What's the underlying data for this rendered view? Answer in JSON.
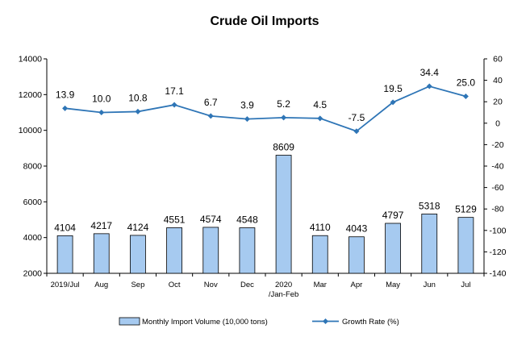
{
  "chart_data": {
    "type": "bar+line",
    "title": "Crude Oil Imports",
    "categories": [
      "2019/Jul",
      "Aug",
      "Sep",
      "Oct",
      "Nov",
      "Dec",
      "2020\n/Jan-Feb",
      "Mar",
      "Apr",
      "May",
      "Jun",
      "Jul"
    ],
    "series": [
      {
        "name": "Monthly Import Volume (10,000 tons)",
        "type": "bar",
        "axis": "left",
        "color": "#a6caf0",
        "values": [
          4104,
          4217,
          4124,
          4551,
          4574,
          4548,
          8609,
          4110,
          4043,
          4797,
          5318,
          5129
        ],
        "labels": [
          "4104",
          "4217",
          "4124",
          "4551",
          "4574",
          "4548",
          "8609",
          "4110",
          "4043",
          "4797",
          "5318",
          "5129"
        ]
      },
      {
        "name": "Growth Rate (%)",
        "type": "line",
        "axis": "right",
        "color": "#2e75b6",
        "values": [
          13.9,
          10.0,
          10.8,
          17.1,
          6.7,
          3.9,
          5.2,
          4.5,
          -7.5,
          19.5,
          34.4,
          25.0
        ],
        "labels": [
          "13.9",
          "10.0",
          "10.8",
          "17.1",
          "6.7",
          "3.9",
          "5.2",
          "4.5",
          "-7.5",
          "19.5",
          "34.4",
          "25.0"
        ]
      }
    ],
    "y_left": {
      "min": 2000,
      "max": 14000,
      "ticks": [
        2000,
        4000,
        6000,
        8000,
        10000,
        12000,
        14000
      ],
      "tick_labels": [
        "2000",
        "4000",
        "6000",
        "8000",
        "10000",
        "12000",
        "14000"
      ]
    },
    "y_right": {
      "min": -140,
      "max": 60,
      "ticks": [
        -140,
        -120,
        -100,
        -80,
        -60,
        -40,
        -20,
        0,
        20,
        40,
        60
      ],
      "tick_labels": [
        "-140",
        "-120",
        "-100",
        "-80",
        "-60",
        "-40",
        "-20",
        "0",
        "20",
        "40",
        "60"
      ]
    },
    "grid": false,
    "legend_position": "bottom"
  }
}
